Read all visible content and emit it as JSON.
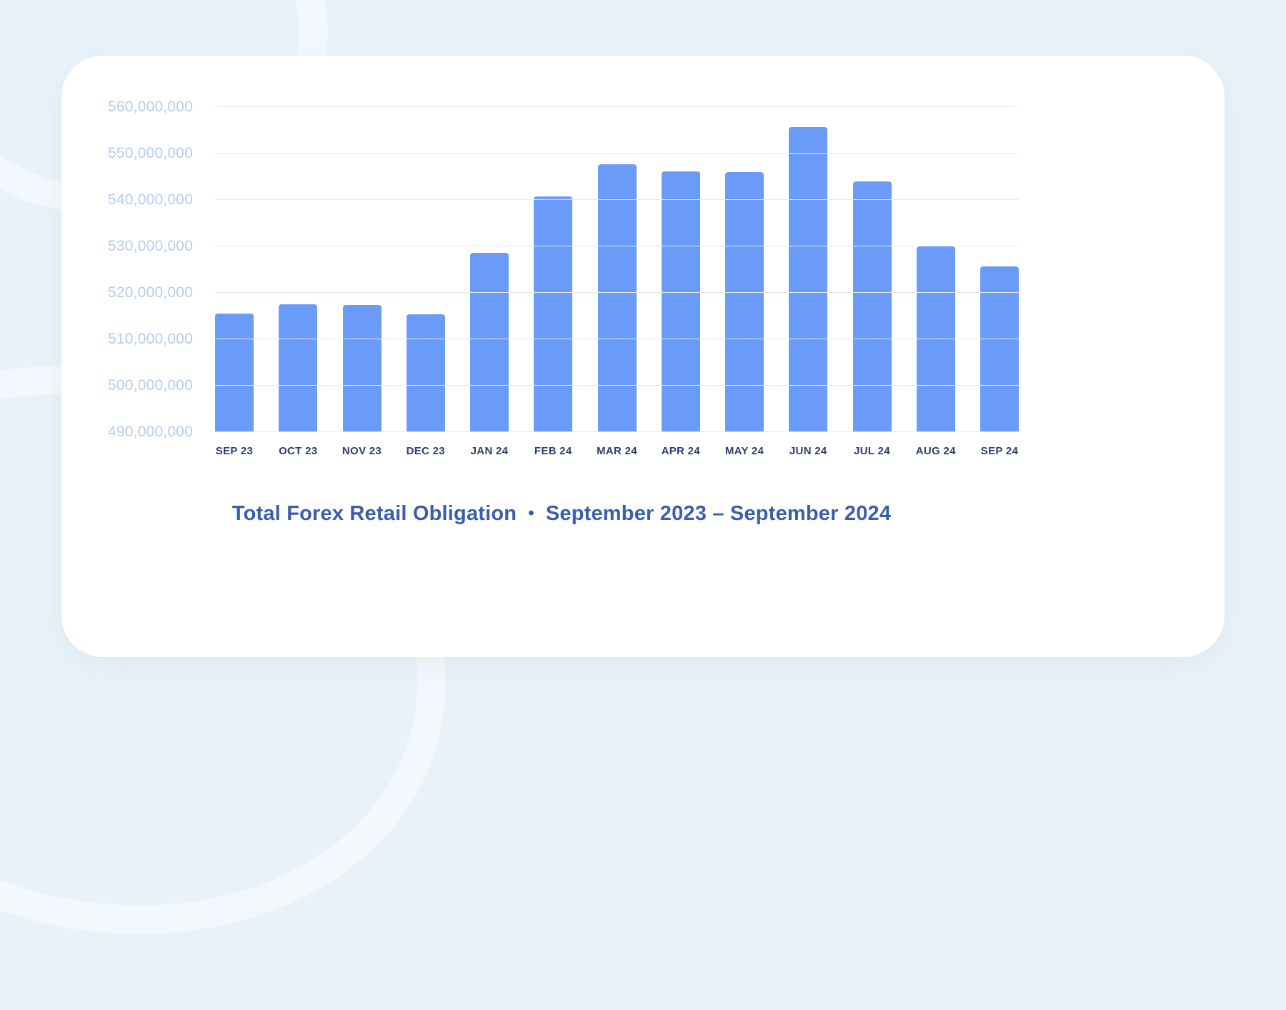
{
  "background_color": "#e9f2f9",
  "card_color": "#ffffff",
  "chart_data": {
    "type": "bar",
    "title": "Total Forex Retail Obligation",
    "title_separator": "•",
    "subtitle": "September 2023 – September 2024",
    "categories": [
      "SEP 23",
      "OCT 23",
      "NOV 23",
      "DEC 23",
      "JAN 24",
      "FEB 24",
      "MAR 24",
      "APR 24",
      "MAY 24",
      "JUN 24",
      "JUL 24",
      "AUG 24",
      "SEP 24"
    ],
    "values": [
      515500000,
      517500000,
      517400000,
      515400000,
      528600000,
      540800000,
      547700000,
      546100000,
      546000000,
      555700000,
      544000000,
      530000000,
      525700000
    ],
    "ylim": [
      490000000,
      560000000
    ],
    "ytick_step": 10000000,
    "ytick_labels": [
      "490,000,000",
      "500,000,000",
      "510,000,000",
      "520,000,000",
      "530,000,000",
      "540,000,000",
      "550,000,000",
      "560,000,000"
    ],
    "grid": true,
    "legend": false,
    "bar_color": "#6b9bf8",
    "gridline_color": "#e3e9f7",
    "ylabel_color": "#b6cdee",
    "xlabel_color": "#2d3e6f",
    "title_color": "#3a5dad"
  }
}
